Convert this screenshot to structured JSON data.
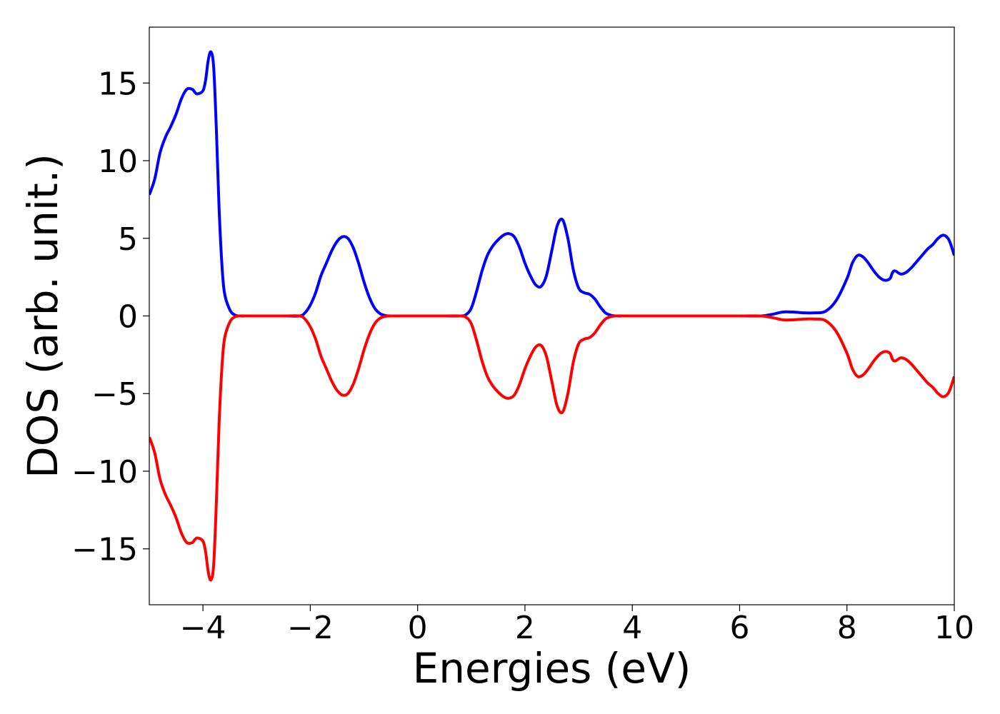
{
  "chart_data": {
    "type": "line",
    "title": "",
    "xlabel": "Energies (eV)",
    "ylabel": "DOS (arb. unit.)",
    "xlim": [
      -5,
      10
    ],
    "ylim": [
      -18.6,
      18.6
    ],
    "xticks": [
      -4,
      -2,
      0,
      2,
      4,
      6,
      8,
      10
    ],
    "xtick_labels": [
      "−4",
      "−2",
      "0",
      "2",
      "4",
      "6",
      "8",
      "10"
    ],
    "yticks": [
      15,
      10,
      5,
      0,
      -5,
      -10,
      -15
    ],
    "ytick_labels": [
      "15",
      "10",
      "5",
      "0",
      "−5",
      "−10",
      "−15"
    ],
    "grid": false,
    "legend": "none",
    "series": [
      {
        "color": "#0000ff",
        "x": [
          -5.0,
          -4.9,
          -4.8,
          -4.7,
          -4.6,
          -4.5,
          -4.4,
          -4.3,
          -4.2,
          -4.15,
          -4.1,
          -4.0,
          -3.95,
          -3.9,
          -3.85,
          -3.8,
          -3.75,
          -3.7,
          -3.65,
          -3.6,
          -3.5,
          -3.4,
          -3.3,
          -3.2,
          -3.1,
          -3.0,
          -2.5,
          -2.2,
          -2.1,
          -2.0,
          -1.9,
          -1.8,
          -1.7,
          -1.6,
          -1.5,
          -1.4,
          -1.3,
          -1.2,
          -1.1,
          -1.0,
          -0.9,
          -0.8,
          -0.7,
          -0.6,
          -0.5,
          0.0,
          0.5,
          0.8,
          0.9,
          1.0,
          1.1,
          1.2,
          1.3,
          1.4,
          1.5,
          1.6,
          1.7,
          1.8,
          1.9,
          2.0,
          2.1,
          2.2,
          2.3,
          2.4,
          2.5,
          2.6,
          2.7,
          2.8,
          2.9,
          3.0,
          3.1,
          3.2,
          3.3,
          3.4,
          3.5,
          3.6,
          3.7,
          4.0,
          5.0,
          6.0,
          6.4,
          6.6,
          6.8,
          7.0,
          7.2,
          7.4,
          7.6,
          7.8,
          8.0,
          8.1,
          8.2,
          8.3,
          8.4,
          8.5,
          8.6,
          8.7,
          8.8,
          8.85,
          8.9,
          9.0,
          9.1,
          9.2,
          9.3,
          9.4,
          9.5,
          9.6,
          9.7,
          9.8,
          9.9,
          10.0
        ],
        "y": [
          7.8,
          8.8,
          10.5,
          11.5,
          12.2,
          13.0,
          14.0,
          14.6,
          14.6,
          14.4,
          14.3,
          14.5,
          15.2,
          16.5,
          17.0,
          16.0,
          12.0,
          7.0,
          3.5,
          1.5,
          0.4,
          0.05,
          0.0,
          0.0,
          0.0,
          0.0,
          0.0,
          0.0,
          0.2,
          0.7,
          1.5,
          2.6,
          3.4,
          4.2,
          4.8,
          5.1,
          5.0,
          4.4,
          3.4,
          2.2,
          1.2,
          0.5,
          0.15,
          0.03,
          0.0,
          0.0,
          0.0,
          0.0,
          0.08,
          0.5,
          1.6,
          2.9,
          3.9,
          4.5,
          4.9,
          5.2,
          5.3,
          5.1,
          4.4,
          3.4,
          2.6,
          2.0,
          1.9,
          2.6,
          4.2,
          5.8,
          6.2,
          5.0,
          3.0,
          1.8,
          1.5,
          1.4,
          1.1,
          0.6,
          0.2,
          0.05,
          0.0,
          0.0,
          0.0,
          0.0,
          0.0,
          0.1,
          0.25,
          0.25,
          0.2,
          0.2,
          0.3,
          1.0,
          2.4,
          3.4,
          3.9,
          3.8,
          3.4,
          2.9,
          2.5,
          2.3,
          2.4,
          2.8,
          2.9,
          2.7,
          2.8,
          3.1,
          3.5,
          3.9,
          4.3,
          4.6,
          5.0,
          5.2,
          4.9,
          3.9
        ]
      },
      {
        "color": "#ff0000",
        "x": [
          -5.0,
          -4.9,
          -4.8,
          -4.7,
          -4.6,
          -4.5,
          -4.4,
          -4.3,
          -4.2,
          -4.15,
          -4.1,
          -4.0,
          -3.95,
          -3.9,
          -3.85,
          -3.8,
          -3.75,
          -3.7,
          -3.65,
          -3.6,
          -3.5,
          -3.4,
          -3.3,
          -3.2,
          -3.1,
          -3.0,
          -2.5,
          -2.2,
          -2.1,
          -2.0,
          -1.9,
          -1.8,
          -1.7,
          -1.6,
          -1.5,
          -1.4,
          -1.3,
          -1.2,
          -1.1,
          -1.0,
          -0.9,
          -0.8,
          -0.7,
          -0.6,
          -0.5,
          0.0,
          0.5,
          0.8,
          0.9,
          1.0,
          1.1,
          1.2,
          1.3,
          1.4,
          1.5,
          1.6,
          1.7,
          1.8,
          1.9,
          2.0,
          2.1,
          2.2,
          2.3,
          2.4,
          2.5,
          2.6,
          2.7,
          2.8,
          2.9,
          3.0,
          3.1,
          3.2,
          3.3,
          3.4,
          3.5,
          3.6,
          3.7,
          4.0,
          5.0,
          6.0,
          6.4,
          6.6,
          6.8,
          7.0,
          7.2,
          7.4,
          7.6,
          7.8,
          8.0,
          8.1,
          8.2,
          8.3,
          8.4,
          8.5,
          8.6,
          8.7,
          8.8,
          8.85,
          8.9,
          9.0,
          9.1,
          9.2,
          9.3,
          9.4,
          9.5,
          9.6,
          9.7,
          9.8,
          9.9,
          10.0
        ],
        "y": [
          -7.8,
          -8.8,
          -10.5,
          -11.5,
          -12.2,
          -13.0,
          -14.0,
          -14.6,
          -14.6,
          -14.4,
          -14.3,
          -14.5,
          -15.2,
          -16.5,
          -17.0,
          -16.0,
          -12.0,
          -7.0,
          -3.5,
          -1.5,
          -0.4,
          -0.05,
          0.0,
          0.0,
          0.0,
          0.0,
          0.0,
          0.0,
          -0.2,
          -0.7,
          -1.5,
          -2.6,
          -3.4,
          -4.2,
          -4.8,
          -5.1,
          -5.0,
          -4.4,
          -3.4,
          -2.2,
          -1.2,
          -0.5,
          -0.15,
          -0.03,
          0.0,
          0.0,
          0.0,
          0.0,
          -0.08,
          -0.5,
          -1.6,
          -2.9,
          -3.9,
          -4.5,
          -4.9,
          -5.2,
          -5.3,
          -5.1,
          -4.4,
          -3.4,
          -2.6,
          -2.0,
          -1.9,
          -2.6,
          -4.2,
          -5.8,
          -6.2,
          -5.0,
          -3.0,
          -1.8,
          -1.5,
          -1.4,
          -1.1,
          -0.6,
          -0.2,
          -0.05,
          0.0,
          0.0,
          0.0,
          0.0,
          0.0,
          -0.1,
          -0.25,
          -0.25,
          -0.2,
          -0.2,
          -0.3,
          -1.0,
          -2.4,
          -3.4,
          -3.9,
          -3.8,
          -3.4,
          -2.9,
          -2.5,
          -2.3,
          -2.4,
          -2.8,
          -2.9,
          -2.7,
          -2.8,
          -3.1,
          -3.5,
          -3.9,
          -4.3,
          -4.6,
          -5.0,
          -5.2,
          -4.9,
          -3.9
        ]
      }
    ]
  }
}
